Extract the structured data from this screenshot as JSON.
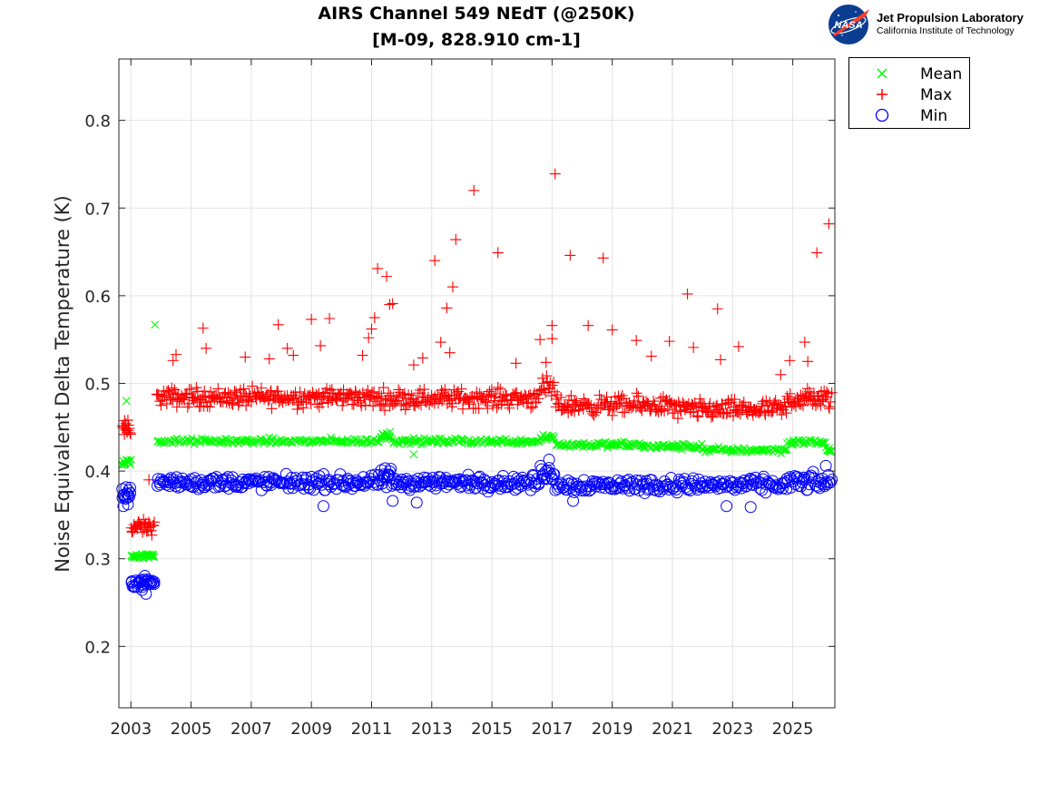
{
  "chart_data": {
    "type": "scatter",
    "title": "AIRS Channel 549 NEdT (@250K)",
    "subtitle": "[M-09, 828.910 cm-1]",
    "xlabel": "",
    "ylabel": "Noise Equivalent Delta Temperature (K)",
    "xlim": [
      2002.6,
      2026.4
    ],
    "ylim": [
      0.13,
      0.87
    ],
    "xticks": [
      "2003",
      "2005",
      "2007",
      "2009",
      "2011",
      "2013",
      "2015",
      "2017",
      "2019",
      "2021",
      "2023",
      "2025"
    ],
    "yticks": [
      "0.2",
      "0.3",
      "0.4",
      "0.5",
      "0.6",
      "0.7",
      "0.8"
    ],
    "grid": true,
    "legend_position": "outside-top-right",
    "series": [
      {
        "name": "Mean",
        "marker": "x",
        "color": "#00ff00",
        "points": [
          [
            2002.7,
            0.408
          ],
          [
            2002.8,
            0.41
          ],
          [
            2002.9,
            0.412
          ],
          [
            2002.85,
            0.48
          ],
          [
            2003.0,
            0.413
          ],
          [
            2003.1,
            0.303
          ],
          [
            2003.4,
            0.304
          ],
          [
            2003.7,
            0.305
          ],
          [
            2003.8,
            0.567
          ],
          [
            2004.0,
            0.434
          ],
          [
            2005.0,
            0.434
          ],
          [
            2006.0,
            0.434
          ],
          [
            2007.0,
            0.433
          ],
          [
            2008.0,
            0.433
          ],
          [
            2009.0,
            0.434
          ],
          [
            2010.0,
            0.434
          ],
          [
            2011.0,
            0.434
          ],
          [
            2011.5,
            0.443
          ],
          [
            2012.0,
            0.434
          ],
          [
            2012.4,
            0.419
          ],
          [
            2013.0,
            0.434
          ],
          [
            2014.0,
            0.437
          ],
          [
            2015.0,
            0.433
          ],
          [
            2016.0,
            0.433
          ],
          [
            2016.9,
            0.439
          ],
          [
            2017.2,
            0.431
          ],
          [
            2018.0,
            0.43
          ],
          [
            2019.0,
            0.429
          ],
          [
            2020.0,
            0.429
          ],
          [
            2021.0,
            0.428
          ],
          [
            2022.0,
            0.426
          ],
          [
            2023.0,
            0.424
          ],
          [
            2024.0,
            0.424
          ],
          [
            2024.8,
            0.425
          ],
          [
            2025.0,
            0.433
          ],
          [
            2026.0,
            0.432
          ],
          [
            2026.2,
            0.423
          ]
        ],
        "bands": [
          {
            "x": [
              2002.7,
              2003.0
            ],
            "center": 0.41,
            "spread": 0.004,
            "n": 10
          },
          {
            "x": [
              2003.0,
              2003.8
            ],
            "center": 0.303,
            "spread": 0.002,
            "n": 28
          },
          {
            "x": [
              2003.85,
              2011.3
            ],
            "center": 0.434,
            "spread": 0.0025,
            "n": 160
          },
          {
            "x": [
              2011.3,
              2011.65
            ],
            "center": 0.441,
            "spread": 0.004,
            "n": 14
          },
          {
            "x": [
              2011.65,
              2016.6
            ],
            "center": 0.434,
            "spread": 0.0025,
            "n": 110
          },
          {
            "x": [
              2016.6,
              2017.1
            ],
            "center": 0.439,
            "spread": 0.003,
            "n": 14
          },
          {
            "x": [
              2017.1,
              2020.0
            ],
            "center": 0.43,
            "spread": 0.0025,
            "n": 70
          },
          {
            "x": [
              2020.0,
              2022.0
            ],
            "center": 0.428,
            "spread": 0.0025,
            "n": 50
          },
          {
            "x": [
              2022.0,
              2024.8
            ],
            "center": 0.424,
            "spread": 0.0025,
            "n": 60
          },
          {
            "x": [
              2024.8,
              2026.1
            ],
            "center": 0.433,
            "spread": 0.0025,
            "n": 30
          },
          {
            "x": [
              2026.1,
              2026.3
            ],
            "center": 0.424,
            "spread": 0.003,
            "n": 8
          }
        ]
      },
      {
        "name": "Max",
        "marker": "+",
        "color": "#ff0000",
        "points": [
          [
            2002.9,
            0.458
          ],
          [
            2003.6,
            0.39
          ],
          [
            2004.4,
            0.526
          ],
          [
            2004.5,
            0.533
          ],
          [
            2005.4,
            0.563
          ],
          [
            2005.5,
            0.54
          ],
          [
            2006.8,
            0.53
          ],
          [
            2007.6,
            0.528
          ],
          [
            2007.9,
            0.567
          ],
          [
            2008.2,
            0.54
          ],
          [
            2008.4,
            0.532
          ],
          [
            2009.0,
            0.573
          ],
          [
            2009.3,
            0.543
          ],
          [
            2009.6,
            0.574
          ],
          [
            2010.7,
            0.532
          ],
          [
            2010.9,
            0.552
          ],
          [
            2011.0,
            0.562
          ],
          [
            2011.1,
            0.575
          ],
          [
            2011.2,
            0.631
          ],
          [
            2011.5,
            0.622
          ],
          [
            2011.6,
            0.59
          ],
          [
            2011.7,
            0.591
          ],
          [
            2012.4,
            0.521
          ],
          [
            2012.7,
            0.529
          ],
          [
            2013.1,
            0.64
          ],
          [
            2013.3,
            0.547
          ],
          [
            2013.5,
            0.586
          ],
          [
            2013.6,
            0.535
          ],
          [
            2013.7,
            0.61
          ],
          [
            2013.8,
            0.664
          ],
          [
            2014.4,
            0.72
          ],
          [
            2015.2,
            0.649
          ],
          [
            2015.8,
            0.523
          ],
          [
            2016.6,
            0.55
          ],
          [
            2016.8,
            0.524
          ],
          [
            2017.0,
            0.566
          ],
          [
            2017.0,
            0.551
          ],
          [
            2017.1,
            0.739
          ],
          [
            2017.6,
            0.646
          ],
          [
            2018.2,
            0.566
          ],
          [
            2018.7,
            0.643
          ],
          [
            2019.0,
            0.561
          ],
          [
            2019.8,
            0.549
          ],
          [
            2020.3,
            0.531
          ],
          [
            2020.9,
            0.548
          ],
          [
            2021.5,
            0.602
          ],
          [
            2021.7,
            0.541
          ],
          [
            2022.5,
            0.585
          ],
          [
            2022.6,
            0.527
          ],
          [
            2023.2,
            0.542
          ],
          [
            2024.6,
            0.51
          ],
          [
            2024.9,
            0.526
          ],
          [
            2025.4,
            0.547
          ],
          [
            2025.5,
            0.525
          ],
          [
            2025.8,
            0.649
          ],
          [
            2026.2,
            0.682
          ]
        ],
        "bands": [
          {
            "x": [
              2002.7,
              2003.0
            ],
            "center": 0.447,
            "spread": 0.008,
            "n": 14
          },
          {
            "x": [
              2003.0,
              2003.8
            ],
            "center": 0.336,
            "spread": 0.006,
            "n": 30
          },
          {
            "x": [
              2003.85,
              2011.0
            ],
            "center": 0.484,
            "spread": 0.008,
            "n": 230
          },
          {
            "x": [
              2011.0,
              2016.5
            ],
            "center": 0.483,
            "spread": 0.008,
            "n": 170
          },
          {
            "x": [
              2016.5,
              2017.1
            ],
            "center": 0.493,
            "spread": 0.01,
            "n": 18
          },
          {
            "x": [
              2017.1,
              2021.0
            ],
            "center": 0.475,
            "spread": 0.008,
            "n": 120
          },
          {
            "x": [
              2021.0,
              2024.8
            ],
            "center": 0.47,
            "spread": 0.008,
            "n": 120
          },
          {
            "x": [
              2024.8,
              2026.3
            ],
            "center": 0.482,
            "spread": 0.009,
            "n": 50
          }
        ]
      },
      {
        "name": "Min",
        "marker": "o",
        "color": "#0000ff",
        "points": [
          [
            2002.75,
            0.36
          ],
          [
            2002.9,
            0.362
          ],
          [
            2003.5,
            0.26
          ],
          [
            2009.4,
            0.36
          ],
          [
            2011.7,
            0.366
          ],
          [
            2012.5,
            0.364
          ],
          [
            2016.9,
            0.413
          ],
          [
            2017.7,
            0.366
          ],
          [
            2022.8,
            0.36
          ],
          [
            2023.6,
            0.359
          ],
          [
            2026.1,
            0.406
          ]
        ],
        "bands": [
          {
            "x": [
              2002.7,
              2003.0
            ],
            "center": 0.372,
            "spread": 0.006,
            "n": 14
          },
          {
            "x": [
              2003.0,
              2003.8
            ],
            "center": 0.273,
            "spread": 0.005,
            "n": 30
          },
          {
            "x": [
              2003.85,
              2011.3
            ],
            "center": 0.387,
            "spread": 0.006,
            "n": 190
          },
          {
            "x": [
              2011.3,
              2011.65
            ],
            "center": 0.392,
            "spread": 0.009,
            "n": 14
          },
          {
            "x": [
              2011.65,
              2016.6
            ],
            "center": 0.387,
            "spread": 0.006,
            "n": 130
          },
          {
            "x": [
              2016.6,
              2017.1
            ],
            "center": 0.397,
            "spread": 0.007,
            "n": 16
          },
          {
            "x": [
              2017.1,
              2024.8
            ],
            "center": 0.384,
            "spread": 0.006,
            "n": 190
          },
          {
            "x": [
              2024.8,
              2026.3
            ],
            "center": 0.387,
            "spread": 0.007,
            "n": 40
          }
        ]
      }
    ]
  },
  "logo": {
    "badge_text": "NASA",
    "name": "Jet Propulsion Laboratory",
    "sub": "California Institute of Technology"
  }
}
